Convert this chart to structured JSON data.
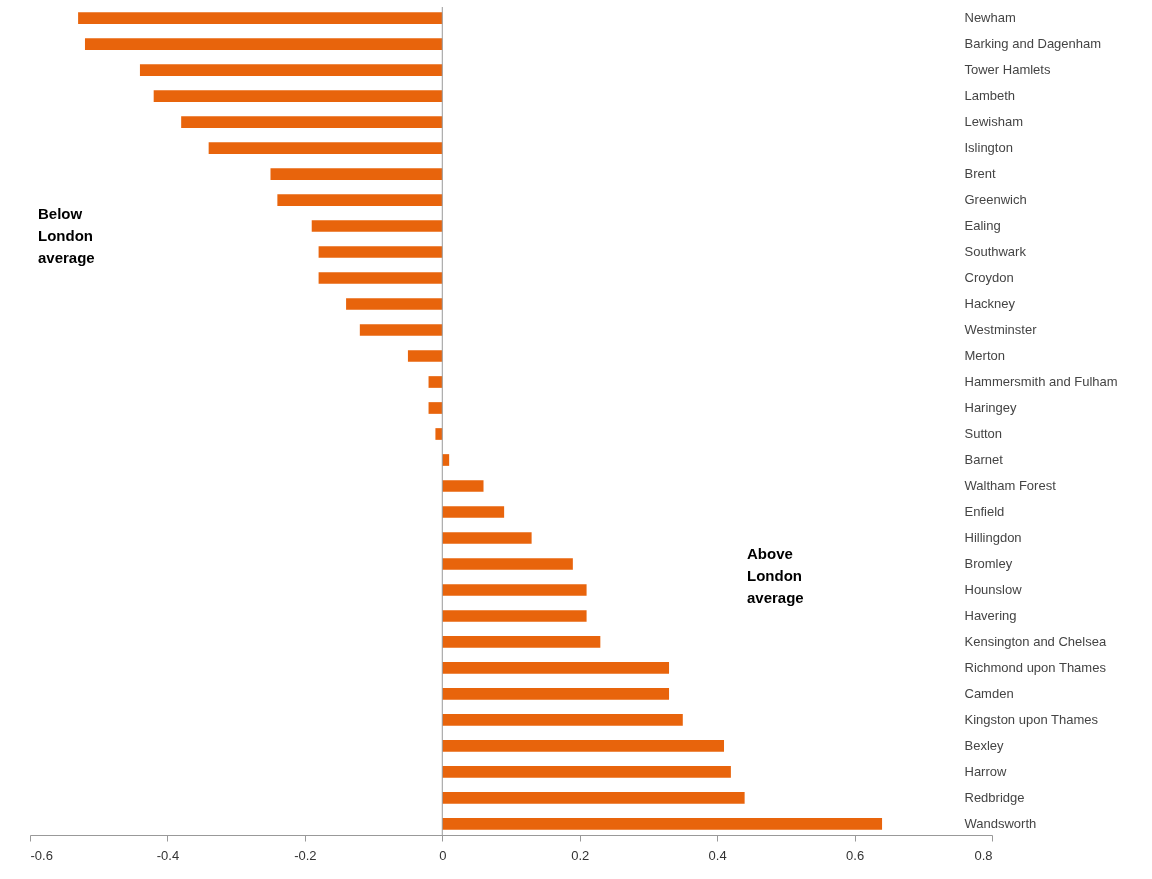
{
  "chart_data": {
    "type": "bar",
    "orientation": "horizontal",
    "categories": [
      "Newham",
      "Barking and Dagenham",
      "Tower Hamlets",
      "Lambeth",
      "Lewisham",
      "Islington",
      "Brent",
      "Greenwich",
      "Ealing",
      "Southwark",
      "Croydon",
      "Hackney",
      "Westminster",
      "Merton",
      "Hammersmith and Fulham",
      "Haringey",
      "Sutton",
      "Barnet",
      "Waltham Forest",
      "Enfield",
      "Hillingdon",
      "Bromley",
      "Hounslow",
      "Havering",
      "Kensington and Chelsea",
      "Richmond upon Thames",
      "Camden",
      "Kingston upon Thames",
      "Bexley",
      "Harrow",
      "Redbridge",
      "Wandsworth"
    ],
    "values": [
      -0.53,
      -0.52,
      -0.44,
      -0.42,
      -0.38,
      -0.34,
      -0.25,
      -0.24,
      -0.19,
      -0.18,
      -0.18,
      -0.14,
      -0.12,
      -0.05,
      -0.02,
      -0.02,
      -0.01,
      0.01,
      0.06,
      0.09,
      0.13,
      0.19,
      0.21,
      0.21,
      0.23,
      0.33,
      0.33,
      0.35,
      0.41,
      0.42,
      0.44,
      0.64
    ],
    "color": "#e8640c",
    "xlim": [
      -0.6,
      0.8
    ],
    "xticks": [
      -0.6,
      -0.4,
      -0.2,
      0,
      0.2,
      0.4,
      0.6,
      0.8
    ],
    "annotations": [
      "Below London average",
      "Above London average"
    ]
  }
}
